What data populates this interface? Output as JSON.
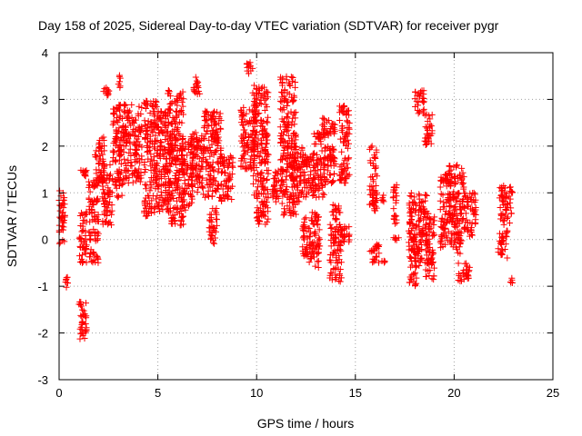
{
  "chart_data": {
    "type": "scatter",
    "title": "Day 158 of 2025, Sidereal Day-to-day VTEC variation (SDTVAR) for receiver pygr",
    "xlabel": "GPS time / hours",
    "ylabel": "SDTVAR / TECUs",
    "xlim": [
      0,
      25
    ],
    "ylim": [
      -3,
      4
    ],
    "xticks": [
      0,
      5,
      10,
      15,
      20,
      25
    ],
    "yticks": [
      -3,
      -2,
      -1,
      0,
      1,
      2,
      3,
      4
    ],
    "xtick_labels": [
      "0",
      "5",
      "10",
      "15",
      "20",
      "25"
    ],
    "ytick_labels": [
      "-3",
      "-2",
      "-1",
      "0",
      "1",
      "2",
      "3",
      "4"
    ],
    "grid": true,
    "marker": "+",
    "color": "#ff0000",
    "series": [
      {
        "name": "SDTVAR",
        "clusters": [
          {
            "x": [
              0.0,
              0.3
            ],
            "y": [
              -0.1,
              1.1
            ]
          },
          {
            "x": [
              0.3,
              0.45
            ],
            "y": [
              -1.05,
              -0.75
            ]
          },
          {
            "x": [
              1.0,
              1.4
            ],
            "y": [
              -2.15,
              -1.3
            ]
          },
          {
            "x": [
              1.0,
              1.4
            ],
            "y": [
              -0.5,
              0.6
            ]
          },
          {
            "x": [
              1.1,
              1.4
            ],
            "y": [
              1.25,
              1.5
            ]
          },
          {
            "x": [
              1.5,
              2.0
            ],
            "y": [
              -0.5,
              1.3
            ]
          },
          {
            "x": [
              1.8,
              2.3
            ],
            "y": [
              1.2,
              2.2
            ]
          },
          {
            "x": [
              2.2,
              2.6
            ],
            "y": [
              3.05,
              3.25
            ]
          },
          {
            "x": [
              2.2,
              2.7
            ],
            "y": [
              0.3,
              1.6
            ]
          },
          {
            "x": [
              2.7,
              3.2
            ],
            "y": [
              0.9,
              2.9
            ]
          },
          {
            "x": [
              3.0,
              3.1
            ],
            "y": [
              3.2,
              3.55
            ]
          },
          {
            "x": [
              3.2,
              4.2
            ],
            "y": [
              1.2,
              2.9
            ]
          },
          {
            "x": [
              4.3,
              5.0
            ],
            "y": [
              0.5,
              3.0
            ]
          },
          {
            "x": [
              5.0,
              5.6
            ],
            "y": [
              0.6,
              2.8
            ]
          },
          {
            "x": [
              5.5,
              6.3
            ],
            "y": [
              0.3,
              3.2
            ]
          },
          {
            "x": [
              6.2,
              6.8
            ],
            "y": [
              0.6,
              2.2
            ]
          },
          {
            "x": [
              6.8,
              7.2
            ],
            "y": [
              3.1,
              3.5
            ]
          },
          {
            "x": [
              6.7,
              7.3
            ],
            "y": [
              1.0,
              2.3
            ]
          },
          {
            "x": [
              7.3,
              8.2
            ],
            "y": [
              0.9,
              2.8
            ]
          },
          {
            "x": [
              7.6,
              8.0
            ],
            "y": [
              -0.1,
              0.7
            ]
          },
          {
            "x": [
              8.2,
              8.8
            ],
            "y": [
              0.8,
              1.8
            ]
          },
          {
            "x": [
              9.2,
              10.0
            ],
            "y": [
              1.5,
              2.9
            ]
          },
          {
            "x": [
              9.5,
              9.8
            ],
            "y": [
              3.5,
              3.8
            ]
          },
          {
            "x": [
              9.8,
              10.6
            ],
            "y": [
              0.8,
              3.3
            ]
          },
          {
            "x": [
              10.0,
              10.6
            ],
            "y": [
              0.3,
              0.8
            ]
          },
          {
            "x": [
              10.8,
              11.2
            ],
            "y": [
              0.8,
              1.5
            ]
          },
          {
            "x": [
              11.2,
              12.0
            ],
            "y": [
              0.5,
              3.5
            ]
          },
          {
            "x": [
              11.8,
              12.4
            ],
            "y": [
              0.8,
              2.0
            ]
          },
          {
            "x": [
              12.3,
              12.9
            ],
            "y": [
              0.9,
              1.9
            ]
          },
          {
            "x": [
              12.3,
              12.8
            ],
            "y": [
              -0.5,
              0.5
            ]
          },
          {
            "x": [
              12.9,
              13.5
            ],
            "y": [
              0.9,
              2.3
            ]
          },
          {
            "x": [
              12.8,
              13.2
            ],
            "y": [
              -0.6,
              0.6
            ]
          },
          {
            "x": [
              13.3,
              14.0
            ],
            "y": [
              2.2,
              2.6
            ]
          },
          {
            "x": [
              13.4,
              14.0
            ],
            "y": [
              1.2,
              2.0
            ]
          },
          {
            "x": [
              13.7,
              14.3
            ],
            "y": [
              -0.9,
              0.8
            ]
          },
          {
            "x": [
              14.2,
              14.7
            ],
            "y": [
              1.2,
              2.9
            ]
          },
          {
            "x": [
              14.2,
              14.7
            ],
            "y": [
              -0.05,
              0.3
            ]
          },
          {
            "x": [
              15.7,
              16.1
            ],
            "y": [
              0.6,
              2.0
            ]
          },
          {
            "x": [
              15.7,
              16.2
            ],
            "y": [
              -0.5,
              -0.1
            ]
          },
          {
            "x": [
              16.3,
              16.5
            ],
            "y": [
              -0.55,
              -0.45
            ]
          },
          {
            "x": [
              16.3,
              16.5
            ],
            "y": [
              0.8,
              0.95
            ]
          },
          {
            "x": [
              16.9,
              17.1
            ],
            "y": [
              0.3,
              1.2
            ]
          },
          {
            "x": [
              16.9,
              17.2
            ],
            "y": [
              -0.05,
              0.05
            ]
          },
          {
            "x": [
              17.7,
              18.1
            ],
            "y": [
              -1.0,
              1.0
            ]
          },
          {
            "x": [
              17.9,
              18.4
            ],
            "y": [
              -0.6,
              0.3
            ]
          },
          {
            "x": [
              18.0,
              18.5
            ],
            "y": [
              2.7,
              3.2
            ]
          },
          {
            "x": [
              18.2,
              18.7
            ],
            "y": [
              0.1,
              1.0
            ]
          },
          {
            "x": [
              18.5,
              18.9
            ],
            "y": [
              2.0,
              2.7
            ]
          },
          {
            "x": [
              18.5,
              19.0
            ],
            "y": [
              -0.9,
              0.5
            ]
          },
          {
            "x": [
              19.3,
              19.8
            ],
            "y": [
              -0.2,
              1.4
            ]
          },
          {
            "x": [
              19.7,
              20.5
            ],
            "y": [
              0.4,
              1.6
            ]
          },
          {
            "x": [
              19.8,
              20.4
            ],
            "y": [
              -0.3,
              0.6
            ]
          },
          {
            "x": [
              20.2,
              20.8
            ],
            "y": [
              -0.9,
              -0.5
            ]
          },
          {
            "x": [
              20.5,
              21.1
            ],
            "y": [
              0.0,
              1.0
            ]
          },
          {
            "x": [
              22.3,
              22.9
            ],
            "y": [
              0.3,
              1.2
            ]
          },
          {
            "x": [
              22.2,
              22.7
            ],
            "y": [
              -0.4,
              0.2
            ]
          },
          {
            "x": [
              22.8,
              23.0
            ],
            "y": [
              -0.95,
              -0.8
            ]
          },
          {
            "x": [
              22.9,
              23.0
            ],
            "y": [
              1.0,
              1.05
            ]
          }
        ]
      }
    ]
  }
}
